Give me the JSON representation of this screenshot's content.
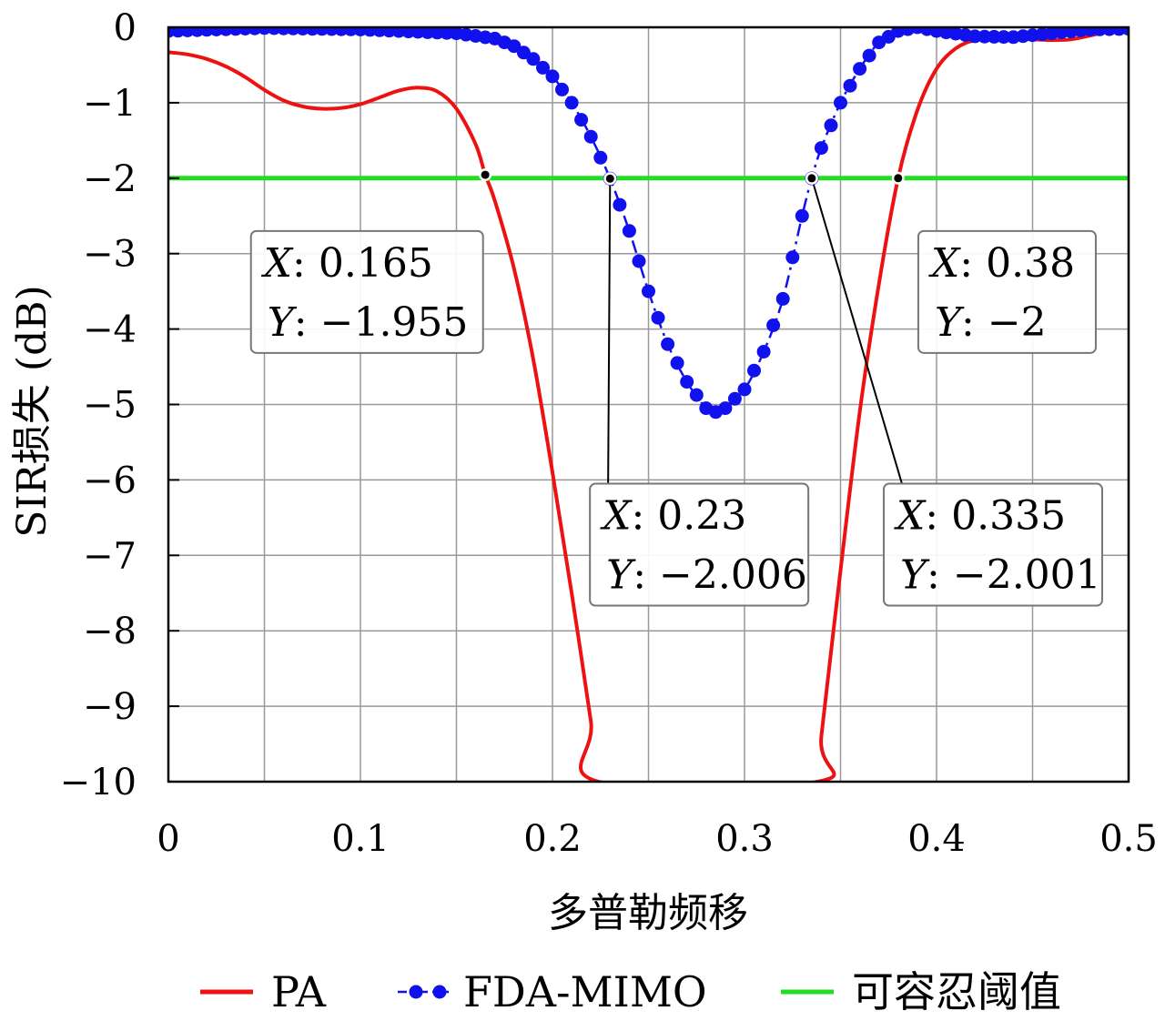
{
  "chart_data": {
    "type": "line",
    "xlabel": "多普勒频移",
    "ylabel": "SIR损失 (dB)",
    "xlim": [
      0,
      0.5
    ],
    "ylim": [
      -10,
      0
    ],
    "x_ticks": [
      "0",
      "0.1",
      "0.2",
      "0.3",
      "0.4",
      "0.5"
    ],
    "y_ticks": [
      "0",
      "−1",
      "−2",
      "−3",
      "−4",
      "−5",
      "−6",
      "−7",
      "−8",
      "−9",
      "−10"
    ],
    "grid": true,
    "legend_position": "bottom",
    "series": [
      {
        "name": "PA",
        "color": "#ee1111",
        "style": "solid",
        "points": [
          [
            0,
            -0.33
          ],
          [
            0.01,
            -0.36
          ],
          [
            0.02,
            -0.42
          ],
          [
            0.03,
            -0.52
          ],
          [
            0.04,
            -0.66
          ],
          [
            0.05,
            -0.83
          ],
          [
            0.06,
            -0.97
          ],
          [
            0.07,
            -1.05
          ],
          [
            0.08,
            -1.08
          ],
          [
            0.09,
            -1.07
          ],
          [
            0.1,
            -1.02
          ],
          [
            0.11,
            -0.93
          ],
          [
            0.12,
            -0.84
          ],
          [
            0.13,
            -0.8
          ],
          [
            0.14,
            -0.85
          ],
          [
            0.15,
            -1.08
          ],
          [
            0.16,
            -1.55
          ],
          [
            0.165,
            -1.955
          ],
          [
            0.17,
            -2.3
          ],
          [
            0.18,
            -3.2
          ],
          [
            0.19,
            -4.4
          ],
          [
            0.2,
            -5.9
          ],
          [
            0.21,
            -7.5
          ],
          [
            0.22,
            -9.2
          ],
          [
            0.224,
            -10
          ],
          [
            0.338,
            -10
          ],
          [
            0.34,
            -9.4
          ],
          [
            0.35,
            -7.2
          ],
          [
            0.36,
            -5.1
          ],
          [
            0.37,
            -3.4
          ],
          [
            0.38,
            -2
          ],
          [
            0.39,
            -1.1
          ],
          [
            0.4,
            -0.55
          ],
          [
            0.41,
            -0.28
          ],
          [
            0.42,
            -0.17
          ],
          [
            0.43,
            -0.15
          ],
          [
            0.44,
            -0.15
          ],
          [
            0.45,
            -0.16
          ],
          [
            0.46,
            -0.17
          ],
          [
            0.47,
            -0.16
          ],
          [
            0.48,
            -0.11
          ],
          [
            0.49,
            -0.05
          ],
          [
            0.5,
            -0.03
          ]
        ]
      },
      {
        "name": "FDA-MIMO",
        "color": "#1111ee",
        "style": "dash-dot with filled circle markers",
        "points": [
          [
            0,
            -0.05
          ],
          [
            0.05,
            -0.01
          ],
          [
            0.1,
            -0.03
          ],
          [
            0.15,
            -0.08
          ],
          [
            0.17,
            -0.15
          ],
          [
            0.18,
            -0.25
          ],
          [
            0.19,
            -0.42
          ],
          [
            0.2,
            -0.65
          ],
          [
            0.21,
            -1.0
          ],
          [
            0.22,
            -1.45
          ],
          [
            0.23,
            -2.006
          ],
          [
            0.24,
            -2.7
          ],
          [
            0.25,
            -3.5
          ],
          [
            0.26,
            -4.2
          ],
          [
            0.27,
            -4.7
          ],
          [
            0.28,
            -5.05
          ],
          [
            0.285,
            -5.1
          ],
          [
            0.29,
            -5.05
          ],
          [
            0.3,
            -4.8
          ],
          [
            0.31,
            -4.3
          ],
          [
            0.32,
            -3.6
          ],
          [
            0.33,
            -2.5
          ],
          [
            0.335,
            -2.001
          ],
          [
            0.34,
            -1.6
          ],
          [
            0.35,
            -1.0
          ],
          [
            0.36,
            -0.55
          ],
          [
            0.37,
            -0.2
          ],
          [
            0.38,
            -0.05
          ],
          [
            0.39,
            0
          ],
          [
            0.4,
            -0.05
          ],
          [
            0.42,
            -0.12
          ],
          [
            0.44,
            -0.13
          ],
          [
            0.46,
            -0.08
          ],
          [
            0.48,
            -0.03
          ],
          [
            0.5,
            -0.02
          ]
        ]
      },
      {
        "name": "可容忍阈值",
        "color": "#22dd22",
        "style": "solid",
        "points": [
          [
            0,
            -2
          ],
          [
            0.5,
            -2
          ]
        ]
      }
    ],
    "annotations": [
      {
        "x": 0.165,
        "y": -1.955,
        "x_text": "0.165",
        "y_text": "−1.955",
        "box_at": [
          0.043,
          -2.7
        ]
      },
      {
        "x": 0.23,
        "y": -2.006,
        "x_text": "0.23",
        "y_text": "−2.006",
        "box_at": [
          0.2195,
          -6.05
        ]
      },
      {
        "x": 0.335,
        "y": -2.001,
        "x_text": "0.335",
        "y_text": "−2.001",
        "box_at": [
          0.3725,
          -6.05
        ]
      },
      {
        "x": 0.38,
        "y": -2,
        "x_text": "0.38",
        "y_text": "−2",
        "box_at": [
          0.3905,
          -2.7
        ]
      }
    ],
    "annotation_labels": {
      "x_key": "X",
      "y_key": "Y"
    }
  }
}
